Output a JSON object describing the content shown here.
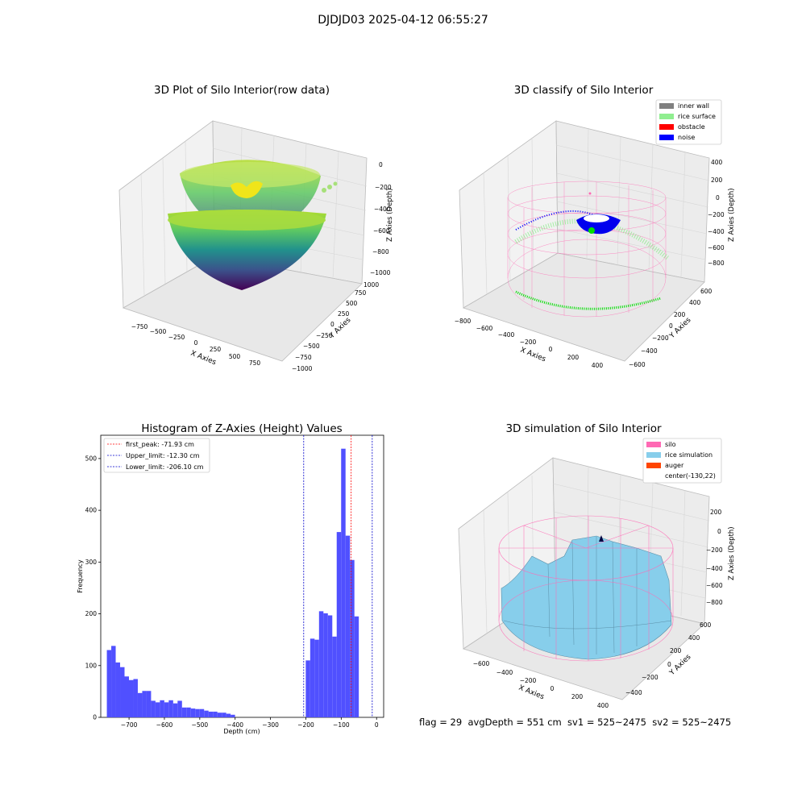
{
  "figure": {
    "suptitle": "DJDJD03 2025-04-12 06:55:27",
    "footer": "flag = 29  avgDepth = 551 cm  sv1 = 525~2475  sv2 = 525~2475"
  },
  "colors": {
    "inner_wall": "#808080",
    "rice_surface": "#90ee90",
    "obstacle": "#ff0000",
    "noise": "#0000ff",
    "silo": "#ff69b4",
    "rice_simulation": "#87ceeb",
    "auger": "#ff4500",
    "hist_bar": "#5050ff",
    "peak_line": "#ff0000",
    "limit_line": "#0000cc"
  },
  "chart_data": [
    {
      "type": "scatter",
      "dimension": "3d",
      "title": "3D Plot of Silo Interior(row data)",
      "xlabel": "X Axies",
      "ylabel": "Y Axies",
      "zlabel": "Z Axies (Depth)",
      "xticks": [
        "−750",
        "−500",
        "−250",
        "0",
        "250",
        "500",
        "750"
      ],
      "yticks": [
        "−1000",
        "−750",
        "−500",
        "−250",
        "0",
        "250",
        "500",
        "750",
        "1000"
      ],
      "zticks": [
        "0",
        "−200",
        "−400",
        "−600",
        "−800",
        "−1000"
      ],
      "colormap": "viridis"
    },
    {
      "type": "scatter",
      "dimension": "3d",
      "title": "3D classify of Silo Interior",
      "xlabel": "X Axies",
      "ylabel": "Y Axies",
      "zlabel": "Z Axies (Depth)",
      "xticks": [
        "−800",
        "−600",
        "−400",
        "−200",
        "0",
        "200",
        "400"
      ],
      "yticks": [
        "−600",
        "−400",
        "−200",
        "0",
        "200",
        "400",
        "600"
      ],
      "zticks": [
        "400",
        "200",
        "0",
        "−200",
        "−400",
        "−600",
        "−800"
      ],
      "legend": [
        "inner wall",
        "rice surface",
        "obstacle",
        "noise"
      ],
      "legend_position": "top-right"
    },
    {
      "type": "bar",
      "title": "Histogram of Z-Axies (Height) Values",
      "xlabel": "Depth (cm)",
      "ylabel": "Frequency",
      "xlim": [
        -780,
        20
      ],
      "ylim": [
        0,
        545
      ],
      "xticks": [
        -700,
        -600,
        -500,
        -400,
        -300,
        -200,
        -100,
        0
      ],
      "xtick_labels": [
        "−700",
        "−600",
        "−500",
        "−400",
        "−300",
        "−200",
        "−100",
        "0"
      ],
      "yticks": [
        0,
        100,
        200,
        300,
        400,
        500
      ],
      "bin_width": 12.5,
      "bins": [
        [
          -756.5,
          130
        ],
        [
          -744,
          138
        ],
        [
          -731.5,
          106
        ],
        [
          -719,
          97
        ],
        [
          -706.5,
          79
        ],
        [
          -694,
          72
        ],
        [
          -681.5,
          74
        ],
        [
          -669,
          47
        ],
        [
          -656.5,
          51
        ],
        [
          -644,
          51
        ],
        [
          -631.5,
          32
        ],
        [
          -619,
          29
        ],
        [
          -606.5,
          33
        ],
        [
          -594,
          29
        ],
        [
          -581.5,
          33
        ],
        [
          -569,
          27
        ],
        [
          -556.5,
          32
        ],
        [
          -544,
          19
        ],
        [
          -531.5,
          19
        ],
        [
          -519,
          17
        ],
        [
          -506.5,
          16
        ],
        [
          -494,
          16
        ],
        [
          -481.5,
          13
        ],
        [
          -469,
          11
        ],
        [
          -456.5,
          11
        ],
        [
          -444,
          9
        ],
        [
          -431.5,
          9
        ],
        [
          -419,
          7
        ],
        [
          -406.5,
          5
        ],
        [
          -194,
          110
        ],
        [
          -181.5,
          152
        ],
        [
          -169,
          150
        ],
        [
          -156.5,
          205
        ],
        [
          -144,
          201
        ],
        [
          -131.5,
          197
        ],
        [
          -119,
          156
        ],
        [
          -106.5,
          358
        ],
        [
          -94,
          519
        ],
        [
          -81.5,
          351
        ],
        [
          -69,
          304
        ],
        [
          -56.5,
          195
        ]
      ],
      "lines": [
        {
          "label": "first_peak: -71.93 cm",
          "x": -71.93,
          "color": "#ff0000"
        },
        {
          "label": "Upper_limit: -12.30 cm",
          "x": -12.3,
          "color": "#0000cc"
        },
        {
          "label": "Lower_limit: -206.10 cm",
          "x": -206.1,
          "color": "#0000cc"
        }
      ],
      "legend_position": "top-left"
    },
    {
      "type": "area",
      "dimension": "3d",
      "title": "3D simulation of Silo Interior",
      "xlabel": "X Axies",
      "ylabel": "Y Axies",
      "zlabel": "Z Axies (Depth)",
      "xticks": [
        "−600",
        "−400",
        "−200",
        "0",
        "200",
        "400"
      ],
      "yticks": [
        "−400",
        "−200",
        "0",
        "200",
        "400",
        "600"
      ],
      "zticks": [
        "200",
        "0",
        "−200",
        "−400",
        "−600",
        "−800"
      ],
      "legend": [
        "silo",
        "rice simulation",
        "auger",
        "center(-130,22)"
      ],
      "legend_position": "top-right"
    }
  ]
}
